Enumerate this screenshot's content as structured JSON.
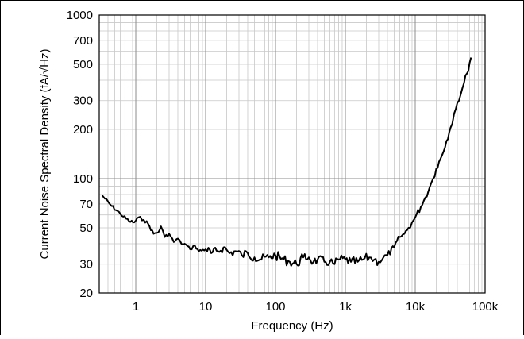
{
  "chart_data": {
    "type": "line",
    "title": "",
    "xlabel": "Frequency (Hz)",
    "ylabel": "Current Noise Spectral Density (fA/√Hz)",
    "x_scale": "log",
    "y_scale": "log",
    "xlim": [
      0.3,
      100000
    ],
    "ylim": [
      20,
      1000
    ],
    "grid": true,
    "x_ticks": [
      {
        "value": 1,
        "label": "1"
      },
      {
        "value": 10,
        "label": "10"
      },
      {
        "value": 100,
        "label": "100"
      },
      {
        "value": 1000,
        "label": "1k"
      },
      {
        "value": 10000,
        "label": "10k"
      },
      {
        "value": 100000,
        "label": "100k"
      }
    ],
    "y_ticks": [
      {
        "value": 20,
        "label": "20"
      },
      {
        "value": 30,
        "label": "30"
      },
      {
        "value": 50,
        "label": "50"
      },
      {
        "value": 70,
        "label": "70"
      },
      {
        "value": 100,
        "label": "100"
      },
      {
        "value": 200,
        "label": "200"
      },
      {
        "value": 300,
        "label": "300"
      },
      {
        "value": 500,
        "label": "500"
      },
      {
        "value": 700,
        "label": "700"
      },
      {
        "value": 1000,
        "label": "1000"
      }
    ],
    "series": [
      {
        "color": "#000000",
        "x": [
          0.33,
          0.45,
          0.6,
          0.8,
          0.95,
          1.1,
          1.3,
          1.5,
          1.8,
          2.1,
          2.3,
          2.6,
          3.0,
          3.5,
          4.0,
          4.5,
          5.0,
          6.0,
          7.0,
          8.0,
          10,
          12,
          15,
          18,
          22,
          27,
          33,
          40,
          50,
          60,
          80,
          100,
          130,
          160,
          200,
          250,
          300,
          350,
          400,
          500,
          600,
          700,
          800,
          1000,
          1200,
          1500,
          1800,
          2200,
          2600,
          3000,
          3500,
          4000,
          5000,
          6000,
          7000,
          8000,
          9000,
          10000,
          12000,
          14000,
          16000,
          18000,
          20000,
          24000,
          28000,
          32000,
          36000,
          40000,
          45000,
          50000,
          55000,
          60000,
          63000
        ],
        "y": [
          79,
          68,
          61,
          55,
          54,
          58,
          56,
          53,
          46,
          47,
          51,
          44,
          46,
          41,
          43,
          40,
          40,
          37,
          39,
          36,
          37,
          35,
          36,
          38,
          35,
          36,
          34,
          35,
          33,
          32,
          33,
          34,
          32,
          31,
          30,
          33,
          33,
          31,
          32,
          31,
          31,
          30,
          32,
          32,
          31,
          31,
          32,
          33,
          32,
          31,
          33,
          34,
          38,
          44,
          46,
          50,
          54,
          58,
          67,
          77,
          88,
          100,
          115,
          138,
          170,
          205,
          250,
          290,
          330,
          385,
          440,
          510,
          550
        ]
      }
    ]
  }
}
